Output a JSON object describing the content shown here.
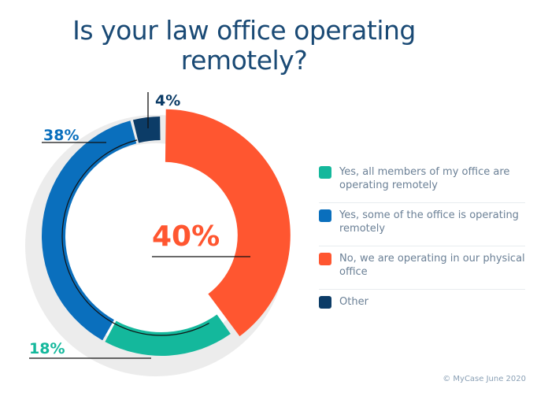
{
  "chart_data": {
    "type": "pie",
    "title": "Is your law office operating remotely?",
    "categories": [
      "No, we are operating in our physical office",
      "Yes, all members of my office are operating remotely",
      "Yes, some of the office is operating remotely",
      "Other"
    ],
    "values": [
      40,
      18,
      38,
      4
    ],
    "data_labels": [
      "40%",
      "18%",
      "38%",
      "4%"
    ],
    "colors": [
      "#ff5630",
      "#14b89c",
      "#0a6fbd",
      "#0c3c67"
    ],
    "legend_placement": "right"
  },
  "legend": [
    {
      "label": "Yes, all members of my office are operating remotely",
      "color": "#14b89c"
    },
    {
      "label": "Yes, some of the office is operating remotely",
      "color": "#0a6fbd"
    },
    {
      "label": "No, we are operating in our physical office",
      "color": "#ff5630"
    },
    {
      "label": "Other",
      "color": "#0c3c67"
    }
  ],
  "credit": "© MyCase June 2020"
}
